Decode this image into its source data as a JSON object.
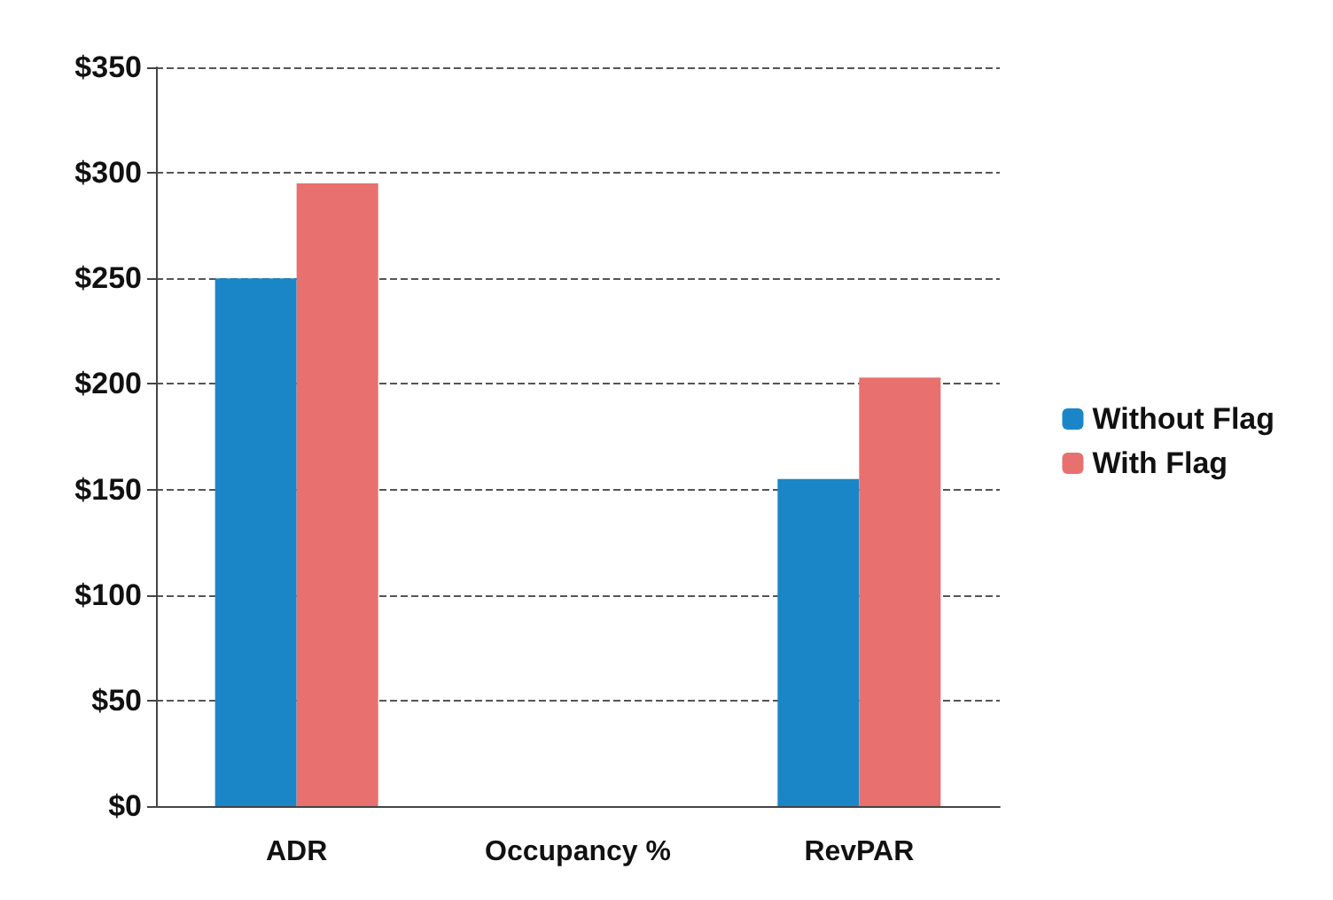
{
  "chart_data": {
    "type": "bar",
    "categories": [
      "ADR",
      "Occupancy %",
      "RevPAR"
    ],
    "series": [
      {
        "name": "Without Flag",
        "color": "#1a86c8",
        "values": [
          250,
          null,
          155
        ]
      },
      {
        "name": "With Flag",
        "color": "#e8706e",
        "values": [
          295,
          null,
          203
        ]
      }
    ],
    "ylim": [
      0,
      350
    ],
    "yticks": [
      {
        "value": 0,
        "label": "$0"
      },
      {
        "value": 50,
        "label": "$50"
      },
      {
        "value": 100,
        "label": "$100"
      },
      {
        "value": 150,
        "label": "$150"
      },
      {
        "value": 200,
        "label": "$200"
      },
      {
        "value": 250,
        "label": "$250"
      },
      {
        "value": 300,
        "label": "$300"
      },
      {
        "value": 350,
        "label": "$350"
      }
    ],
    "grid": "y",
    "legend": "right"
  }
}
